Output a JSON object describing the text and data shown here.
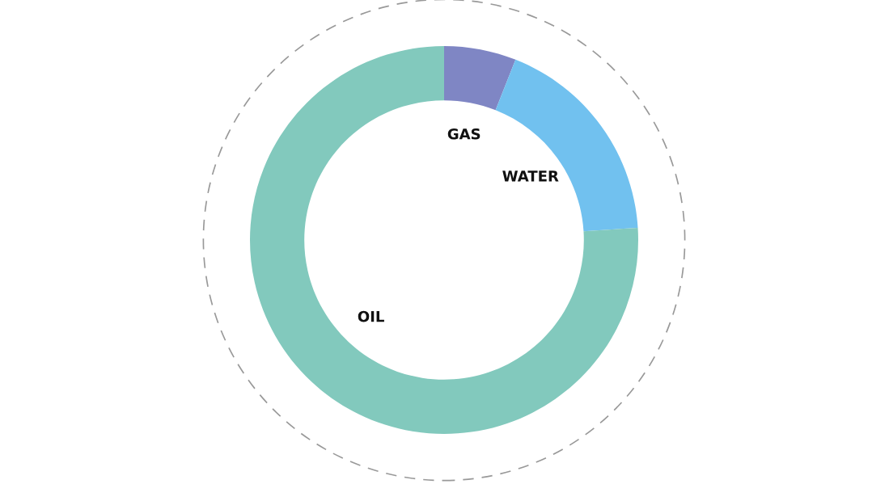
{
  "chart_data": {
    "type": "donut",
    "categories": [
      "GAS",
      "WATER",
      "OIL"
    ],
    "values": [
      6,
      18,
      76
    ],
    "colors": [
      "#7f86c4",
      "#71c1ef",
      "#82c9bd"
    ]
  }
}
